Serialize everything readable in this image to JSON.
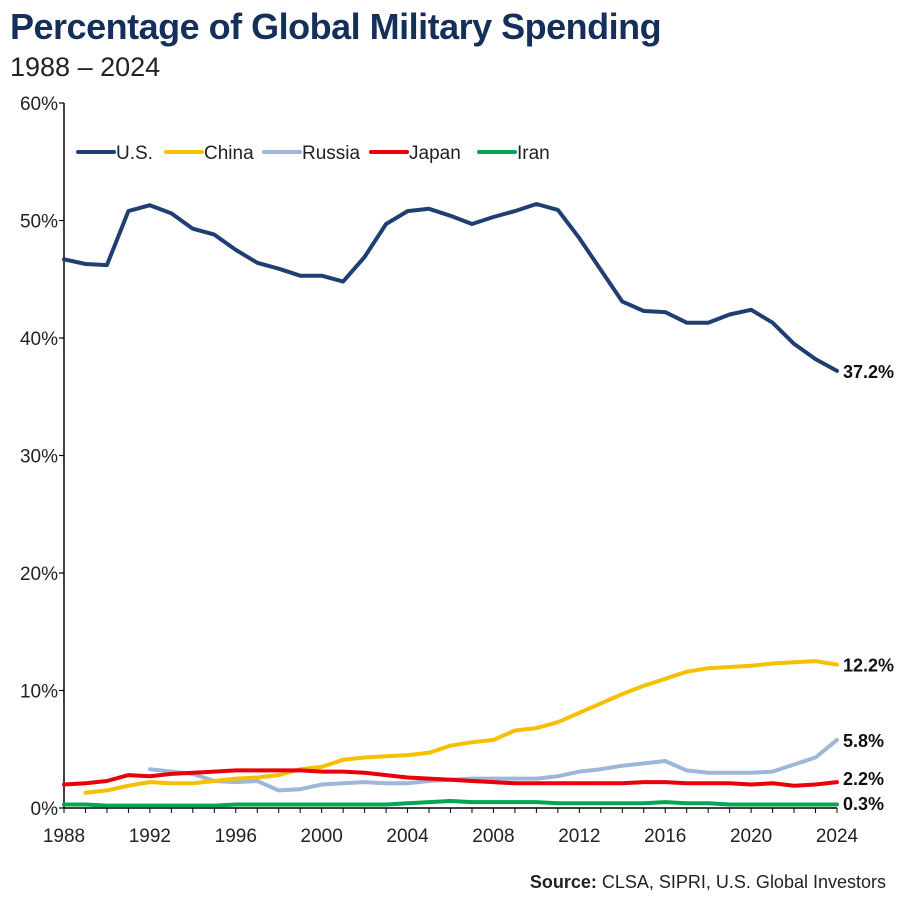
{
  "header": {
    "title": "Percentage of Global Military Spending",
    "subtitle": "1988 – 2024"
  },
  "footer": {
    "source_label": "Source:",
    "source_text": "CLSA, SIPRI, U.S. Global Investors"
  },
  "colors": {
    "U.S.": "#1f3f73",
    "China": "#f6c000",
    "Russia": "#9db6da",
    "Japan": "#e8000b",
    "Iran": "#00a651"
  },
  "chart_data": {
    "type": "line",
    "title": "Percentage of Global Military Spending",
    "subtitle": "1988 – 2024",
    "xlabel": "",
    "ylabel": "",
    "xlim": [
      1988,
      2024
    ],
    "ylim": [
      0,
      60
    ],
    "x_ticks": [
      1988,
      1992,
      1996,
      2000,
      2004,
      2008,
      2012,
      2016,
      2020,
      2024
    ],
    "y_ticks": [
      0,
      10,
      20,
      30,
      40,
      50,
      60
    ],
    "y_tick_labels": [
      "0%",
      "10%",
      "20%",
      "30%",
      "40%",
      "50%",
      "60%"
    ],
    "grid": false,
    "legend_position": "top-left",
    "x": [
      1988,
      1989,
      1990,
      1991,
      1992,
      1993,
      1994,
      1995,
      1996,
      1997,
      1998,
      1999,
      2000,
      2001,
      2002,
      2003,
      2004,
      2005,
      2006,
      2007,
      2008,
      2009,
      2010,
      2011,
      2012,
      2013,
      2014,
      2015,
      2016,
      2017,
      2018,
      2019,
      2020,
      2021,
      2022,
      2023,
      2024
    ],
    "series": [
      {
        "name": "U.S.",
        "values": [
          46.7,
          46.3,
          46.2,
          50.8,
          51.3,
          50.6,
          49.3,
          48.8,
          47.5,
          46.4,
          45.9,
          45.3,
          45.3,
          44.8,
          46.9,
          49.7,
          50.8,
          51.0,
          50.4,
          49.7,
          50.3,
          50.8,
          51.4,
          50.9,
          48.5,
          45.8,
          43.1,
          42.3,
          42.2,
          41.3,
          41.3,
          42.0,
          42.4,
          41.3,
          39.5,
          38.2,
          37.2
        ]
      },
      {
        "name": "China",
        "values": [
          null,
          1.3,
          1.5,
          1.9,
          2.2,
          2.1,
          2.1,
          2.3,
          2.5,
          2.6,
          2.8,
          3.3,
          3.5,
          4.1,
          4.3,
          4.4,
          4.5,
          4.7,
          5.3,
          5.6,
          5.8,
          6.6,
          6.8,
          7.3,
          8.1,
          8.9,
          9.7,
          10.4,
          11.0,
          11.6,
          11.9,
          12.0,
          12.1,
          12.3,
          12.4,
          12.5,
          12.2
        ]
      },
      {
        "name": "Russia",
        "values": [
          null,
          null,
          null,
          null,
          3.3,
          3.1,
          2.9,
          2.3,
          2.2,
          2.3,
          1.5,
          1.6,
          2.0,
          2.1,
          2.2,
          2.1,
          2.1,
          2.3,
          2.4,
          2.5,
          2.5,
          2.5,
          2.5,
          2.7,
          3.1,
          3.3,
          3.6,
          3.8,
          4.0,
          3.2,
          3.0,
          3.0,
          3.0,
          3.1,
          3.7,
          4.3,
          5.8
        ]
      },
      {
        "name": "Japan",
        "values": [
          2.0,
          2.1,
          2.3,
          2.8,
          2.7,
          2.9,
          3.0,
          3.1,
          3.2,
          3.2,
          3.2,
          3.2,
          3.1,
          3.1,
          3.0,
          2.8,
          2.6,
          2.5,
          2.4,
          2.3,
          2.2,
          2.1,
          2.1,
          2.1,
          2.1,
          2.1,
          2.1,
          2.2,
          2.2,
          2.1,
          2.1,
          2.1,
          2.0,
          2.1,
          1.9,
          2.0,
          2.2
        ]
      },
      {
        "name": "Iran",
        "values": [
          0.3,
          0.3,
          0.2,
          0.2,
          0.2,
          0.2,
          0.2,
          0.2,
          0.3,
          0.3,
          0.3,
          0.3,
          0.3,
          0.3,
          0.3,
          0.3,
          0.4,
          0.5,
          0.6,
          0.5,
          0.5,
          0.5,
          0.5,
          0.4,
          0.4,
          0.4,
          0.4,
          0.4,
          0.5,
          0.4,
          0.4,
          0.3,
          0.3,
          0.3,
          0.3,
          0.3,
          0.3
        ]
      }
    ],
    "end_labels": [
      {
        "series": "U.S.",
        "text": "37.2%"
      },
      {
        "series": "China",
        "text": "12.2%"
      },
      {
        "series": "Russia",
        "text": "5.8%"
      },
      {
        "series": "Japan",
        "text": "2.2%"
      },
      {
        "series": "Iran",
        "text": "0.3%"
      }
    ]
  }
}
